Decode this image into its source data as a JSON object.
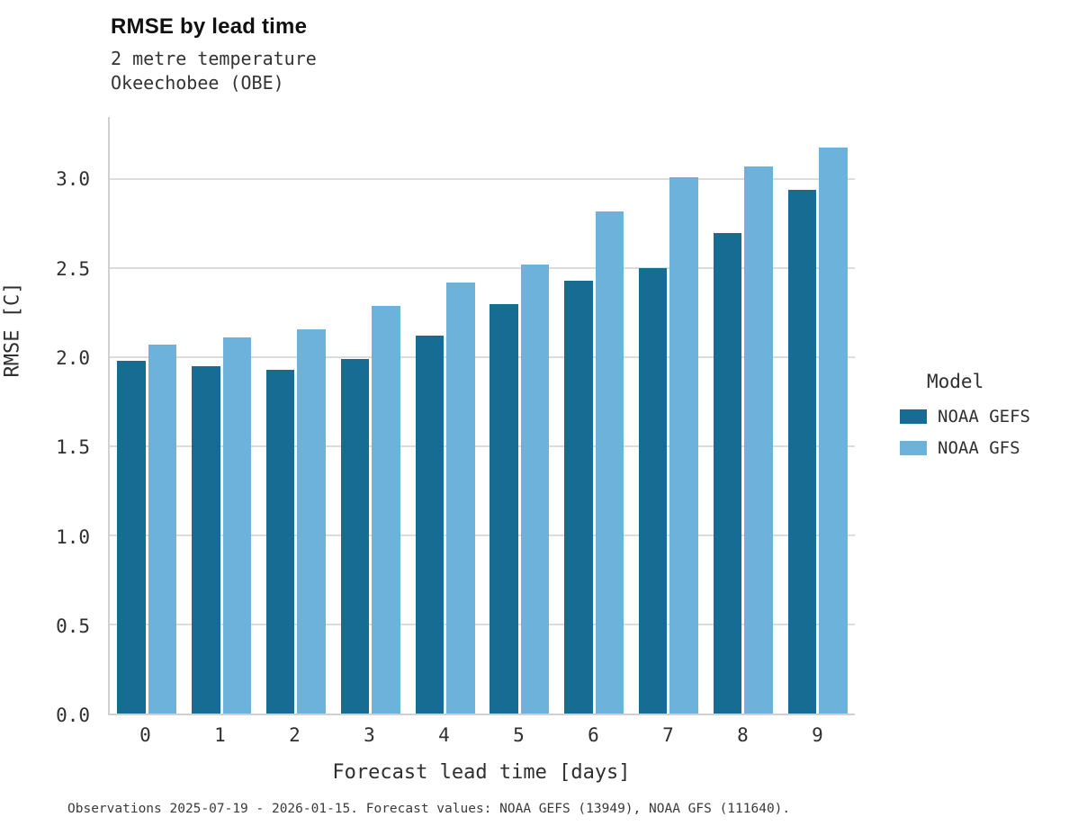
{
  "header": {
    "title": "RMSE by lead time",
    "subtitle_line1": "2 metre temperature",
    "subtitle_line2": "Okeechobee (OBE)"
  },
  "chart_data": {
    "type": "bar",
    "title": "RMSE by lead time",
    "subtitle": "2 metre temperature / Okeechobee (OBE)",
    "categories": [
      "0",
      "1",
      "2",
      "3",
      "4",
      "5",
      "6",
      "7",
      "8",
      "9"
    ],
    "series": [
      {
        "name": "NOAA GEFS",
        "color": "#176c94",
        "values": [
          1.98,
          1.95,
          1.93,
          1.99,
          2.12,
          2.3,
          2.43,
          2.5,
          2.7,
          2.94
        ]
      },
      {
        "name": "NOAA GFS",
        "color": "#6cb2da",
        "values": [
          2.07,
          2.11,
          2.16,
          2.29,
          2.42,
          2.52,
          2.82,
          3.01,
          3.07,
          3.18
        ]
      }
    ],
    "xlabel": "Forecast lead time [days]",
    "ylabel": "RMSE [C]",
    "ylim": [
      0,
      3.35
    ],
    "ytick_labels": [
      "0.0",
      "0.5",
      "1.0",
      "1.5",
      "2.0",
      "2.5",
      "3.0"
    ],
    "grid": "horizontal",
    "legend_title": "Model",
    "legend_position": "right"
  },
  "footer": {
    "caption": "Observations 2025-07-19 - 2026-01-15. Forecast values: NOAA GEFS (13949), NOAA GFS (111640)."
  }
}
